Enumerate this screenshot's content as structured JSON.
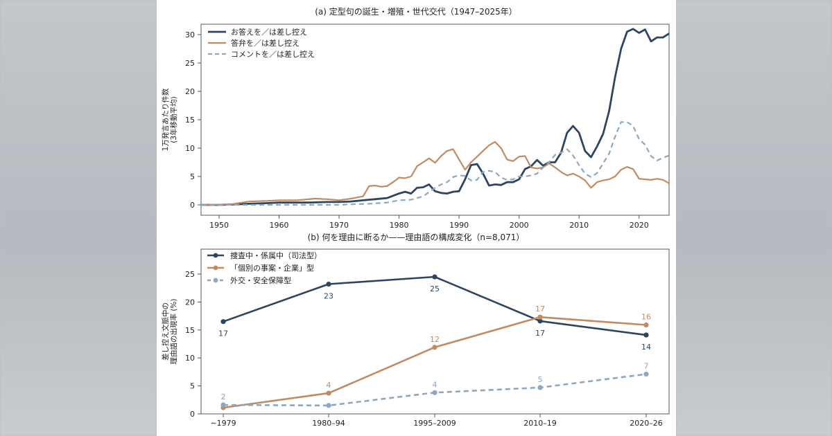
{
  "chart_data": [
    {
      "type": "line",
      "title": "(a) 定型句の誕生・増殖・世代交代（1947–2025年）",
      "ylabel": "1万発言あたり件数\n(3年移動平均)",
      "xlabel": "",
      "xlim": [
        1947,
        2025
      ],
      "ylim": [
        0,
        32
      ],
      "x_ticks": [
        1950,
        1960,
        1970,
        1980,
        1990,
        2000,
        2010,
        2020
      ],
      "y_ticks": [
        0,
        5,
        10,
        15,
        20,
        25,
        30
      ],
      "grid": false,
      "legend_position": "top-left",
      "series": [
        {
          "name": "お答えを／は差し控え",
          "color": "#2c4561",
          "dash": "solid",
          "points": [
            [
              1947,
              0
            ],
            [
              1950,
              0
            ],
            [
              1953,
              0.1
            ],
            [
              1955,
              0.2
            ],
            [
              1958,
              0.3
            ],
            [
              1960,
              0.4
            ],
            [
              1963,
              0.4
            ],
            [
              1965,
              0.4
            ],
            [
              1968,
              0.5
            ],
            [
              1970,
              0.5
            ],
            [
              1972,
              0.6
            ],
            [
              1974,
              0.8
            ],
            [
              1976,
              1
            ],
            [
              1978,
              1.2
            ],
            [
              1980,
              2
            ],
            [
              1981,
              2.3
            ],
            [
              1982,
              2
            ],
            [
              1983,
              3
            ],
            [
              1984,
              3.1
            ],
            [
              1985,
              3.6
            ],
            [
              1986,
              2.4
            ],
            [
              1987,
              2.1
            ],
            [
              1988,
              2
            ],
            [
              1989,
              2.3
            ],
            [
              1990,
              2.4
            ],
            [
              1991,
              4.5
            ],
            [
              1992,
              7
            ],
            [
              1993,
              7.2
            ],
            [
              1994,
              5.5
            ],
            [
              1995,
              3.4
            ],
            [
              1996,
              3.6
            ],
            [
              1997,
              3.5
            ],
            [
              1998,
              4
            ],
            [
              1999,
              4
            ],
            [
              2000,
              4.5
            ],
            [
              2001,
              6.3
            ],
            [
              2002,
              6.8
            ],
            [
              2003,
              7.9
            ],
            [
              2004,
              6.9
            ],
            [
              2005,
              7.5
            ],
            [
              2006,
              7.5
            ],
            [
              2007,
              9.2
            ],
            [
              2008,
              12.7
            ],
            [
              2009,
              13.9
            ],
            [
              2010,
              12.7
            ],
            [
              2011,
              9.5
            ],
            [
              2012,
              8.4
            ],
            [
              2013,
              10.3
            ],
            [
              2014,
              12.5
            ],
            [
              2015,
              16.5
            ],
            [
              2016,
              22.5
            ],
            [
              2017,
              27.5
            ],
            [
              2018,
              30.5
            ],
            [
              2019,
              31
            ],
            [
              2020,
              30.3
            ],
            [
              2021,
              30.9
            ],
            [
              2022,
              28.8
            ],
            [
              2023,
              29.5
            ],
            [
              2024,
              29.5
            ],
            [
              2025,
              30.2
            ]
          ]
        },
        {
          "name": "答弁を／は差し控え",
          "color": "#c28a5f",
          "dash": "solid",
          "points": [
            [
              1947,
              0
            ],
            [
              1952,
              0.1
            ],
            [
              1955,
              0.6
            ],
            [
              1958,
              0.7
            ],
            [
              1960,
              0.8
            ],
            [
              1963,
              0.8
            ],
            [
              1966,
              1.1
            ],
            [
              1968,
              1
            ],
            [
              1970,
              0.8
            ],
            [
              1972,
              1.1
            ],
            [
              1974,
              1.5
            ],
            [
              1975,
              3.3
            ],
            [
              1976,
              3.4
            ],
            [
              1977,
              3.2
            ],
            [
              1978,
              3.3
            ],
            [
              1979,
              4
            ],
            [
              1980,
              4.8
            ],
            [
              1981,
              4.7
            ],
            [
              1982,
              5
            ],
            [
              1983,
              6.8
            ],
            [
              1984,
              7.5
            ],
            [
              1985,
              8.2
            ],
            [
              1986,
              7.4
            ],
            [
              1987,
              8.6
            ],
            [
              1988,
              9.5
            ],
            [
              1989,
              9.8
            ],
            [
              1990,
              8
            ],
            [
              1991,
              6.2
            ],
            [
              1992,
              7.5
            ],
            [
              1993,
              8.5
            ],
            [
              1994,
              9.5
            ],
            [
              1995,
              10.5
            ],
            [
              1996,
              11.1
            ],
            [
              1997,
              10
            ],
            [
              1998,
              8
            ],
            [
              1999,
              7.7
            ],
            [
              2000,
              8.5
            ],
            [
              2001,
              8.6
            ],
            [
              2002,
              6.6
            ],
            [
              2003,
              6.4
            ],
            [
              2004,
              6.6
            ],
            [
              2005,
              7.3
            ],
            [
              2006,
              6.6
            ],
            [
              2007,
              5.8
            ],
            [
              2008,
              5.2
            ],
            [
              2009,
              5.5
            ],
            [
              2010,
              5
            ],
            [
              2011,
              4.3
            ],
            [
              2012,
              3
            ],
            [
              2013,
              4
            ],
            [
              2014,
              4.3
            ],
            [
              2015,
              4.5
            ],
            [
              2016,
              5
            ],
            [
              2017,
              6.2
            ],
            [
              2018,
              6.7
            ],
            [
              2019,
              6.3
            ],
            [
              2020,
              4.6
            ],
            [
              2021,
              4.5
            ],
            [
              2022,
              4.4
            ],
            [
              2023,
              4.6
            ],
            [
              2024,
              4.4
            ],
            [
              2025,
              3.8
            ]
          ]
        },
        {
          "name": "コメントを／は差し控え",
          "color": "#8ea7bf",
          "dash": "dashed",
          "points": [
            [
              1947,
              0
            ],
            [
              1965,
              0
            ],
            [
              1970,
              0
            ],
            [
              1972,
              0.1
            ],
            [
              1975,
              0.2
            ],
            [
              1978,
              0.4
            ],
            [
              1980,
              0.8
            ],
            [
              1982,
              0.9
            ],
            [
              1984,
              1.5
            ],
            [
              1986,
              3
            ],
            [
              1987,
              3.6
            ],
            [
              1988,
              4
            ],
            [
              1989,
              4.9
            ],
            [
              1990,
              5.2
            ],
            [
              1991,
              5.1
            ],
            [
              1992,
              4.3
            ],
            [
              1993,
              4.4
            ],
            [
              1994,
              5.8
            ],
            [
              1995,
              6
            ],
            [
              1996,
              5.8
            ],
            [
              1997,
              4.8
            ],
            [
              1998,
              4.4
            ],
            [
              1999,
              4.5
            ],
            [
              2000,
              5
            ],
            [
              2001,
              5
            ],
            [
              2002,
              5.2
            ],
            [
              2003,
              5.5
            ],
            [
              2004,
              6.6
            ],
            [
              2005,
              7.5
            ],
            [
              2006,
              8.8
            ],
            [
              2007,
              9.2
            ],
            [
              2008,
              9.8
            ],
            [
              2009,
              8.7
            ],
            [
              2010,
              7
            ],
            [
              2011,
              5.5
            ],
            [
              2012,
              4.9
            ],
            [
              2013,
              5.6
            ],
            [
              2014,
              7.3
            ],
            [
              2015,
              9
            ],
            [
              2016,
              12
            ],
            [
              2017,
              14.6
            ],
            [
              2018,
              14.6
            ],
            [
              2019,
              13.9
            ],
            [
              2020,
              11.6
            ],
            [
              2021,
              10.6
            ],
            [
              2022,
              8.6
            ],
            [
              2023,
              7.8
            ],
            [
              2024,
              8.3
            ],
            [
              2025,
              8.7
            ]
          ]
        }
      ]
    },
    {
      "type": "line",
      "title": "(b) 何を理由に断るか——理由語の構成変化（n=8,071）",
      "ylabel": "差し控え文脈中の\n理由語の出現率 (%)",
      "xlabel": "",
      "categories": [
        "∼1979",
        "1980–94",
        "1995–2009",
        "2010–19",
        "2020–26"
      ],
      "ylim": [
        0,
        27
      ],
      "y_ticks": [
        0,
        5,
        10,
        15,
        20,
        25
      ],
      "grid": false,
      "legend_position": "top-left",
      "series": [
        {
          "name": "捜査中・係属中（司法型）",
          "color": "#2c4561",
          "dash": "solid",
          "values": [
            16.5,
            23.2,
            24.5,
            16.6,
            14.1
          ],
          "labels": [
            "17",
            "23",
            "25",
            "17",
            "14"
          ],
          "label_side": "below"
        },
        {
          "name": "「個別の事案・企業」型",
          "color": "#c28a5f",
          "dash": "solid",
          "values": [
            1.1,
            3.7,
            11.9,
            17.3,
            15.9
          ],
          "labels": [
            "",
            "4",
            "12",
            "17",
            "16"
          ],
          "label_side": "above"
        },
        {
          "name": "外交・安全保障型",
          "color": "#8ea7bf",
          "dash": "dashed",
          "values": [
            1.6,
            1.5,
            3.8,
            4.7,
            7.1
          ],
          "labels": [
            "2",
            "",
            "4",
            "5",
            "7"
          ],
          "label_side": "above"
        }
      ]
    }
  ]
}
